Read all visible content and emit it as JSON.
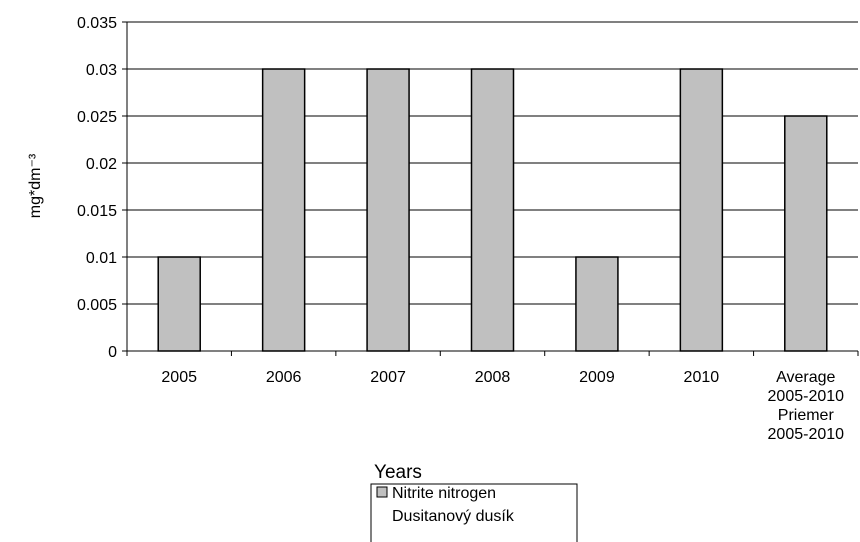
{
  "chart_data": {
    "type": "bar",
    "y_label": "mg*dm⁻³",
    "x_label": "Years\nRoky",
    "categories": [
      "2005",
      "2006",
      "2007",
      "2008",
      "2009",
      "2010",
      "Average\n2005-2010\nPriemer\n2005-2010"
    ],
    "series": [
      {
        "name": "Nitrite nitrogen\nDusitanový dusík",
        "color": "#c0c0c0",
        "values": [
          0.01,
          0.03,
          0.03,
          0.03,
          0.01,
          0.03,
          0.025
        ]
      }
    ],
    "ylim": [
      0,
      0.035
    ],
    "yticks": [
      0,
      0.005,
      0.01,
      0.015,
      0.02,
      0.025,
      0.03,
      0.035
    ],
    "grid": true,
    "legend": "bottom"
  }
}
